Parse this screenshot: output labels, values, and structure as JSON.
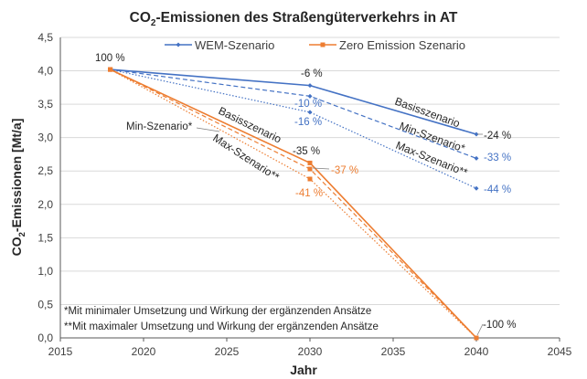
{
  "chart_data": {
    "type": "line",
    "title_main": "CO",
    "title_sub": "2",
    "title_rest": "-Emissionen des Straßengüterverkehrs in AT",
    "xlabel": "Jahr",
    "ylabel_main": "CO",
    "ylabel_sub": "2",
    "ylabel_rest": "-Emissionen [Mt/a]",
    "xlim": [
      2015,
      2045
    ],
    "ylim": [
      0,
      4.5
    ],
    "x_ticks": [
      "2015",
      "2020",
      "2025",
      "2030",
      "2035",
      "2040",
      "2045"
    ],
    "y_ticks": [
      "0,0",
      "0,5",
      "1,0",
      "1,5",
      "2,0",
      "2,5",
      "3,0",
      "3,5",
      "4,0",
      "4,5"
    ],
    "grid": "horizontal",
    "legend_position": "top",
    "colors": {
      "wem": "#4472C4",
      "zero": "#ED7D31",
      "grid": "#D9D9D9",
      "axis": "#595959"
    },
    "series": [
      {
        "name": "WEM-Szenario",
        "group": "wem",
        "style": "solid",
        "x": [
          2018,
          2030,
          2040
        ],
        "y": [
          4.02,
          3.78,
          3.05
        ]
      },
      {
        "group": "wem",
        "style": "dashed",
        "x": [
          2018,
          2030,
          2040
        ],
        "y": [
          4.02,
          3.62,
          2.69
        ]
      },
      {
        "group": "wem",
        "style": "dotted",
        "x": [
          2018,
          2030,
          2040
        ],
        "y": [
          4.02,
          3.38,
          2.24
        ]
      },
      {
        "name": "Zero Emission Szenario",
        "group": "zero",
        "style": "solid",
        "x": [
          2018,
          2030,
          2040
        ],
        "y": [
          4.02,
          2.62,
          0.0
        ]
      },
      {
        "group": "zero",
        "style": "dashed",
        "x": [
          2018,
          2030,
          2040
        ],
        "y": [
          4.02,
          2.53,
          0.0
        ]
      },
      {
        "group": "zero",
        "style": "dotted",
        "x": [
          2018,
          2030,
          2040
        ],
        "y": [
          4.02,
          2.38,
          0.0
        ]
      }
    ],
    "annotations": {
      "start": "100 %",
      "wem_2030_basis": "-6 %",
      "wem_2030_min": "-10 %",
      "wem_2030_max": "-16 %",
      "wem_2040_basis": "-24 %",
      "wem_2040_min": "-33 %",
      "wem_2040_max": "-44 %",
      "zero_2030_basis": "-35 %",
      "zero_2030_min": "-37 %",
      "zero_2030_max": "-41 %",
      "zero_2040": "-100 %",
      "wem_basis_label": "Basisszenario",
      "wem_min_label": "Min-Szenario*",
      "wem_max_label": "Max-Szenario**",
      "zero_basis_label": "Basisszenario",
      "zero_min_label": "Min-Szenario*",
      "zero_max_label": "Max-Szenario**"
    },
    "footnotes": [
      "*Mit minimaler Umsetzung und Wirkung der ergänzenden Ansätze",
      "**Mit maximaler Umsetzung und Wirkung der ergänzenden Ansätze"
    ]
  }
}
